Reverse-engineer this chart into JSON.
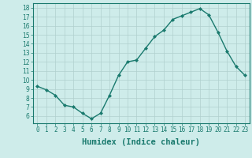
{
  "x": [
    0,
    1,
    2,
    3,
    4,
    5,
    6,
    7,
    8,
    9,
    10,
    11,
    12,
    13,
    14,
    15,
    16,
    17,
    18,
    19,
    20,
    21,
    22,
    23
  ],
  "y": [
    9.3,
    8.9,
    8.3,
    7.2,
    7.0,
    6.3,
    5.7,
    6.3,
    8.3,
    10.5,
    12.0,
    12.2,
    13.5,
    14.8,
    15.5,
    16.7,
    17.1,
    17.5,
    17.9,
    17.2,
    15.3,
    13.2,
    11.5,
    10.5
  ],
  "line_color": "#1a7a6e",
  "marker": "D",
  "marker_size": 2.0,
  "bg_color": "#ceecea",
  "grid_color": "#b0d0ce",
  "xlabel": "Humidex (Indice chaleur)",
  "xlim": [
    -0.5,
    23.5
  ],
  "ylim": [
    5.2,
    18.5
  ],
  "yticks": [
    6,
    7,
    8,
    9,
    10,
    11,
    12,
    13,
    14,
    15,
    16,
    17,
    18
  ],
  "xticks": [
    0,
    1,
    2,
    3,
    4,
    5,
    6,
    7,
    8,
    9,
    10,
    11,
    12,
    13,
    14,
    15,
    16,
    17,
    18,
    19,
    20,
    21,
    22,
    23
  ],
  "tick_label_fontsize": 5.5,
  "xlabel_fontsize": 7.5,
  "line_width": 1.0
}
